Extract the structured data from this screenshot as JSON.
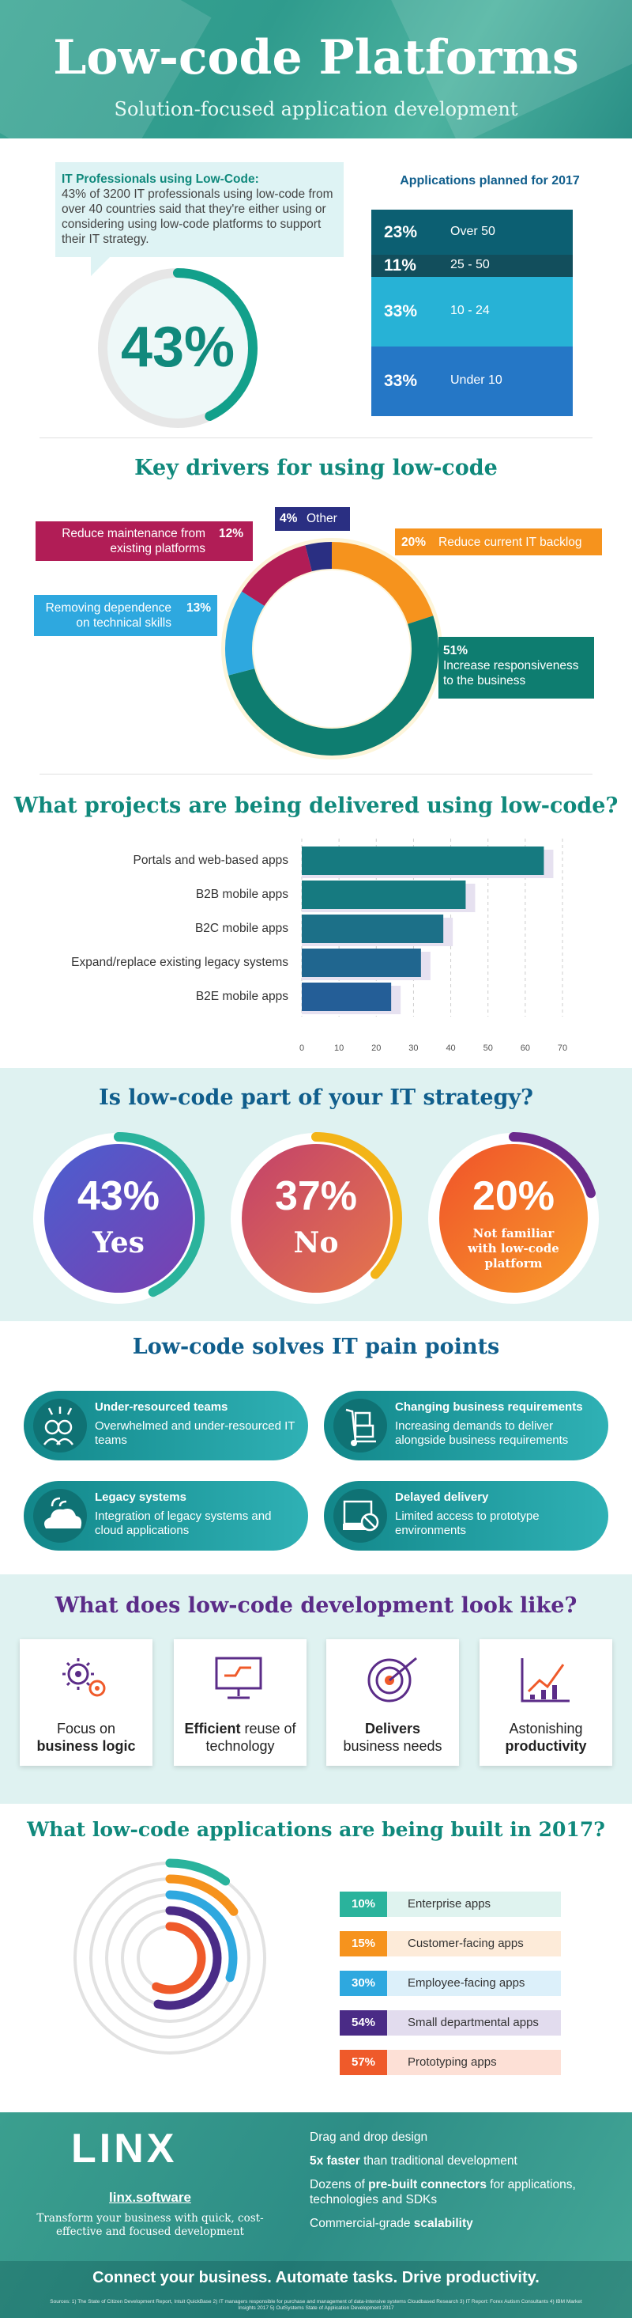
{
  "header": {
    "title": "Low-code Platforms",
    "subtitle": "Solution-focused application development"
  },
  "it_pros": {
    "heading": "IT Professionals using Low-Code:",
    "text": "43% of 3200 IT professionals using low-code from over 40 countries said that they're either using or considering using low-code platforms to support their IT strategy.",
    "percent": "43%",
    "value": 43
  },
  "apps_planned": {
    "title": "Applications planned for 2017",
    "rows": [
      {
        "pct": "23%",
        "label": "Over 50",
        "color": "#0c5f72"
      },
      {
        "pct": "11%",
        "label": "25 - 50",
        "color": "#124e5c"
      },
      {
        "pct": "33%",
        "label": "10 - 24",
        "color": "#27b2d6"
      },
      {
        "pct": "33%",
        "label": "Under 10",
        "color": "#2577c6"
      }
    ]
  },
  "drivers": {
    "title": "Key drivers for using low-code",
    "items": [
      {
        "pct": "51%",
        "label": "Increase responsiveness to the business",
        "value": 51,
        "color": "#0e7d70"
      },
      {
        "pct": "13%",
        "label": "Removing dependence on technical skills",
        "value": 13,
        "color": "#2ea8df"
      },
      {
        "pct": "12%",
        "label": "Reduce maintenance from existing platforms",
        "value": 12,
        "color": "#b11d56"
      },
      {
        "pct": "4%",
        "label": "Other",
        "value": 4,
        "color": "#2a2f82"
      },
      {
        "pct": "20%",
        "label": "Reduce current IT backlog",
        "value": 20,
        "color": "#f6931d"
      }
    ]
  },
  "projects": {
    "title": "What projects are being delivered using low-code?"
  },
  "chart_data": {
    "type": "bar",
    "orientation": "horizontal",
    "categories": [
      "Portals and web-based apps",
      "B2B mobile apps",
      "B2C mobile apps",
      "Expand/replace existing legacy systems",
      "B2E mobile apps"
    ],
    "values": [
      65,
      44,
      38,
      32,
      24
    ],
    "xlim": [
      0,
      70
    ],
    "ticks": [
      "0",
      "10",
      "20",
      "30",
      "40",
      "50",
      "60",
      "70"
    ],
    "colors": [
      "#167a80",
      "#167a80",
      "#1c7088",
      "#20668f",
      "#245e97"
    ]
  },
  "strategy": {
    "title": "Is low-code part of your IT strategy?",
    "items": [
      {
        "pct": "43%",
        "label": "Yes",
        "value": 43,
        "ring": "#2ab39c"
      },
      {
        "pct": "37%",
        "label": "No",
        "value": 37,
        "ring": "#f3b418"
      },
      {
        "pct": "20%",
        "label": "Not familiar with low-code platform",
        "value": 20,
        "ring": "#6a2a8c"
      }
    ]
  },
  "pain": {
    "title": "Low-code solves IT pain points",
    "items": [
      {
        "title": "Under-resourced teams",
        "desc": "Overwhelmed and under-resourced IT teams",
        "icon": "team-icon"
      },
      {
        "title": "Changing business requirements",
        "desc": "Increasing demands to deliver alongside business requirements",
        "icon": "hand-truck-icon"
      },
      {
        "title": "Legacy systems",
        "desc": "Integration of legacy systems and cloud applications",
        "icon": "cloud-systems-icon"
      },
      {
        "title": "Delayed delivery",
        "desc": "Limited access to prototype environments",
        "icon": "restricted-icon"
      }
    ]
  },
  "look": {
    "title": "What does low-code development look like?",
    "cards": [
      {
        "a": "Focus on",
        "b": "business logic",
        "icon": "gears-icon"
      },
      {
        "a": "Efficient",
        "b": " reuse of technology",
        "icon": "monitor-circuit-icon"
      },
      {
        "a": "Delivers",
        "b": "business needs",
        "icon": "target-icon"
      },
      {
        "a": "Astonishing",
        "b": "productivity",
        "icon": "growth-chart-icon"
      }
    ]
  },
  "built": {
    "title": "What low-code applications are being built in 2017?",
    "items": [
      {
        "pct": "10%",
        "label": "Enterprise apps",
        "value": 10,
        "color": "#2ab39c",
        "light": "#dff3ef"
      },
      {
        "pct": "15%",
        "label": "Customer-facing apps",
        "value": 15,
        "color": "#f6931d",
        "light": "#fdebd9"
      },
      {
        "pct": "30%",
        "label": "Employee-facing apps",
        "value": 30,
        "color": "#2ea8df",
        "light": "#dcf0fa"
      },
      {
        "pct": "54%",
        "label": "Small departmental apps",
        "value": 54,
        "color": "#4a2b86",
        "light": "#e2dcee"
      },
      {
        "pct": "57%",
        "label": "Prototyping apps",
        "value": 57,
        "color": "#ef5a2a",
        "light": "#fde0d6"
      }
    ]
  },
  "footer": {
    "logo": "LINX",
    "site": "linx.software",
    "tagline": "Transform your business with quick, cost-effective and focused development",
    "features": [
      {
        "pre": "",
        "bold": "",
        "post": "Drag and drop design"
      },
      {
        "pre": "",
        "bold": "5x faster",
        "post": " than traditional development"
      },
      {
        "pre": "Dozens of ",
        "bold": "pre-built connectors",
        "post": " for applications, technologies and SDKs"
      },
      {
        "pre": "Commercial-grade ",
        "bold": "scalability",
        "post": ""
      }
    ],
    "slogan": "Connect your business. Automate tasks. Drive productivity.",
    "sources": "Sources: 1) The State of Citizen Development Report, Intuit QuickBase 2) IT managers responsible for purchase and management of data-intensive systems Cloudbased Research 3) IT Report: Forex Autism Consultants 4) IBM Market Insights 2017 5) OutSystems State of Application Development 2017"
  }
}
